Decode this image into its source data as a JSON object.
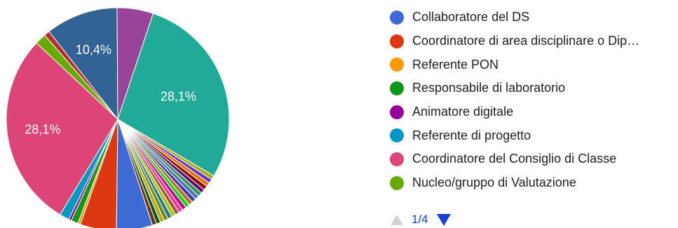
{
  "chart_data": {
    "type": "pie",
    "slices": [
      {
        "label": "Collaboratore del DS",
        "value": 5.2,
        "color": "#3c6bd6"
      },
      {
        "label": "Coordinatore di area disciplinare o Dip…",
        "value": 5.2,
        "color": "#dc3912"
      },
      {
        "label": "Referente PON",
        "value": 0.4,
        "color": "#ff9900"
      },
      {
        "label": "Responsabile di laboratorio",
        "value": 1.0,
        "color": "#109618"
      },
      {
        "label": "Animatore digitale",
        "value": 0.4,
        "color": "#990099"
      },
      {
        "label": "Referente di progetto",
        "value": 1.4,
        "color": "#0099c6"
      },
      {
        "label": "Coordinatore del Consiglio di Classe",
        "value": 28.1,
        "color": "#dd4477"
      },
      {
        "label": "Nucleo/gruppo di Valutazione",
        "value": 1.6,
        "color": "#66aa00"
      },
      {
        "label": "",
        "value": 0.8,
        "color": "#b82e2e"
      },
      {
        "label": "",
        "value": 10.4,
        "color": "#316395"
      },
      {
        "label": "",
        "value": 5.2,
        "color": "#994499"
      },
      {
        "label": "",
        "value": 28.1,
        "color": "#22aa99"
      },
      {
        "label": "",
        "value": 0.6,
        "color": "#aaaa11"
      },
      {
        "label": "",
        "value": 0.6,
        "color": "#6633cc"
      },
      {
        "label": "",
        "value": 0.6,
        "color": "#e67300"
      },
      {
        "label": "",
        "value": 0.6,
        "color": "#8b0707"
      },
      {
        "label": "",
        "value": 0.6,
        "color": "#651067"
      },
      {
        "label": "",
        "value": 0.6,
        "color": "#329262"
      },
      {
        "label": "",
        "value": 0.6,
        "color": "#5574a6"
      },
      {
        "label": "",
        "value": 0.6,
        "color": "#3b3eac"
      },
      {
        "label": "",
        "value": 0.6,
        "color": "#b77322"
      },
      {
        "label": "",
        "value": 0.6,
        "color": "#16d620"
      },
      {
        "label": "",
        "value": 0.6,
        "color": "#b91383"
      },
      {
        "label": "",
        "value": 0.6,
        "color": "#f4359e"
      },
      {
        "label": "",
        "value": 0.6,
        "color": "#9c5935"
      },
      {
        "label": "",
        "value": 0.6,
        "color": "#a9c413"
      },
      {
        "label": "",
        "value": 0.6,
        "color": "#2a778d"
      },
      {
        "label": "",
        "value": 0.6,
        "color": "#668d1c"
      },
      {
        "label": "",
        "value": 0.6,
        "color": "#bea413"
      },
      {
        "label": "",
        "value": 0.6,
        "color": "#0c5922"
      },
      {
        "label": "",
        "value": 0.6,
        "color": "#743411"
      }
    ],
    "data_labels": [
      "28,1%",
      "28,1%",
      "10,4%"
    ],
    "legend_position": "right"
  },
  "legend": {
    "items": [
      {
        "label": "Collaboratore del DS",
        "color": "#3c6bd6"
      },
      {
        "label": "Coordinatore di area disciplinare o Dip…",
        "color": "#dc3912"
      },
      {
        "label": "Referente PON",
        "color": "#ff9900"
      },
      {
        "label": "Responsabile di laboratorio",
        "color": "#109618"
      },
      {
        "label": "Animatore digitale",
        "color": "#990099"
      },
      {
        "label": "Referente di progetto",
        "color": "#0099c6"
      },
      {
        "label": "Coordinatore del Consiglio di Classe",
        "color": "#dd4477"
      },
      {
        "label": "Nucleo/gruppo di Valutazione",
        "color": "#66aa00"
      }
    ]
  },
  "pager": {
    "text": "1/4",
    "prev_icon": "triangle-up-icon",
    "next_icon": "triangle-down-icon"
  }
}
